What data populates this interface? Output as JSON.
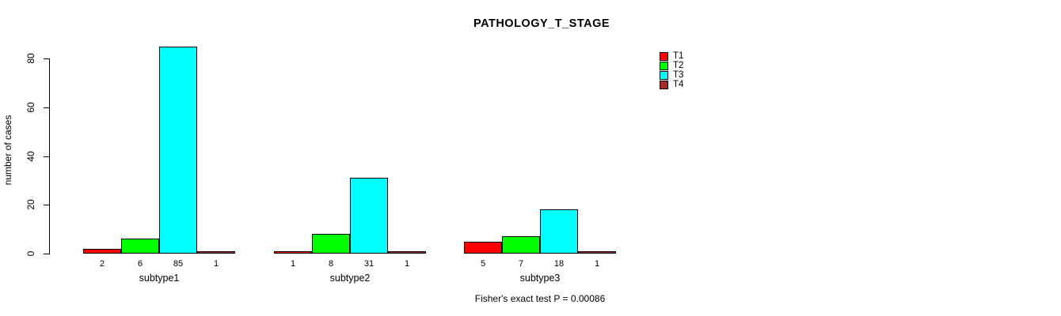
{
  "chart_data": {
    "type": "bar",
    "grouped": true,
    "title": "PATHOLOGY_T_STAGE",
    "xlabel": "",
    "ylabel": "number of cases",
    "ylim": [
      0,
      85
    ],
    "yticks": [
      0,
      20,
      40,
      60,
      80
    ],
    "grid": false,
    "legend_position": "top-right-outside",
    "categories": [
      "subtype1",
      "subtype2",
      "subtype3"
    ],
    "series": [
      {
        "name": "T1",
        "color": "#ff0000",
        "values": [
          2,
          1,
          5
        ]
      },
      {
        "name": "T2",
        "color": "#00ff00",
        "values": [
          6,
          8,
          7
        ]
      },
      {
        "name": "T3",
        "color": "#00ffff",
        "values": [
          85,
          31,
          18
        ]
      },
      {
        "name": "T4",
        "color": "#a52a2a",
        "values": [
          1,
          1,
          1
        ]
      }
    ],
    "bar_value_labels": true,
    "annotation": "Fisher's exact test P = 0.00086"
  }
}
